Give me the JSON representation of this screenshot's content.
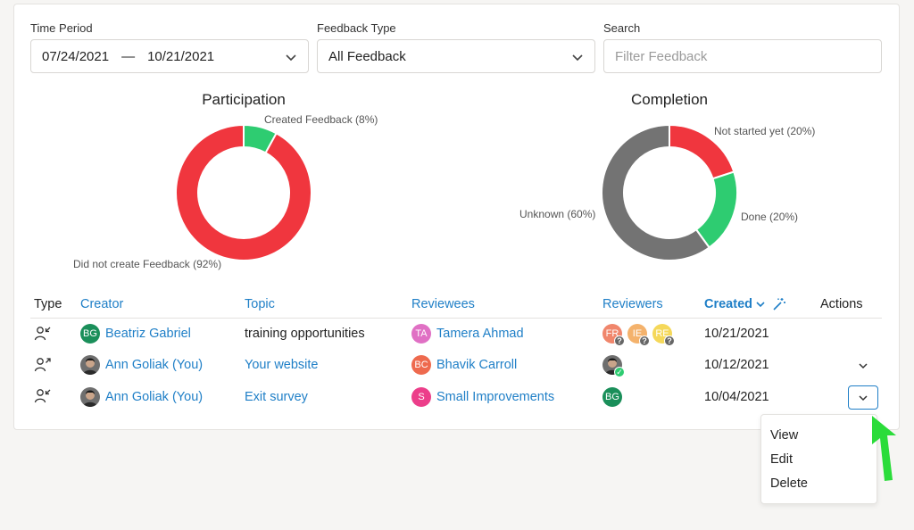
{
  "filters": {
    "time_period": {
      "label": "Time Period",
      "start": "07/24/2021",
      "separator": "—",
      "end": "10/21/2021"
    },
    "feedback_type": {
      "label": "Feedback Type",
      "value": "All Feedback"
    },
    "search": {
      "label": "Search",
      "placeholder": "Filter Feedback"
    }
  },
  "charts": {
    "participation": {
      "title": "Participation",
      "labels": {
        "created": "Created Feedback (8%)",
        "not_created": "Did not create Feedback (92%)"
      }
    },
    "completion": {
      "title": "Completion",
      "labels": {
        "not_started": "Not started yet (20%)",
        "done": "Done (20%)",
        "unknown": "Unknown (60%)"
      }
    }
  },
  "chart_data": [
    {
      "type": "pie",
      "title": "Participation",
      "categories": [
        "Created Feedback",
        "Did not create Feedback"
      ],
      "values": [
        8,
        92
      ],
      "colors": [
        "#2ecc71",
        "#f0363e"
      ]
    },
    {
      "type": "pie",
      "title": "Completion",
      "categories": [
        "Not started yet",
        "Done",
        "Unknown"
      ],
      "values": [
        20,
        20,
        60
      ],
      "colors": [
        "#f0363e",
        "#2ecc71",
        "#737373"
      ]
    }
  ],
  "table": {
    "headers": {
      "type": "Type",
      "creator": "Creator",
      "topic": "Topic",
      "reviewees": "Reviewees",
      "reviewers": "Reviewers",
      "created": "Created",
      "actions": "Actions"
    },
    "rows": [
      {
        "type_icon": "incoming-feedback-icon",
        "creator": "Beatriz Gabriel",
        "creator_initials": "BG",
        "topic": "training opportunities",
        "reviewee": "Tamera Ahmad",
        "reviewee_initials": "TA",
        "reviewers": [
          "FR",
          "IE",
          "RE"
        ],
        "created": "10/21/2021"
      },
      {
        "type_icon": "outgoing-feedback-icon",
        "creator": "Ann Goliak (You)",
        "topic": "Your website",
        "reviewee": "Bhavik Carroll",
        "reviewee_initials": "BC",
        "created": "10/12/2021"
      },
      {
        "type_icon": "incoming-feedback-icon",
        "creator": "Ann Goliak (You)",
        "topic": "Exit survey",
        "reviewee": "Small Improvements",
        "reviewee_initials": "S",
        "reviewers": [
          "BG"
        ],
        "created": "10/04/2021"
      }
    ]
  },
  "actions_menu": {
    "items": [
      "View",
      "Edit",
      "Delete"
    ]
  },
  "colors": {
    "accent": "#1f7fc7",
    "red": "#f0363e",
    "green": "#2ecc71",
    "gray": "#737373",
    "arrow": "#2bdc3a"
  }
}
